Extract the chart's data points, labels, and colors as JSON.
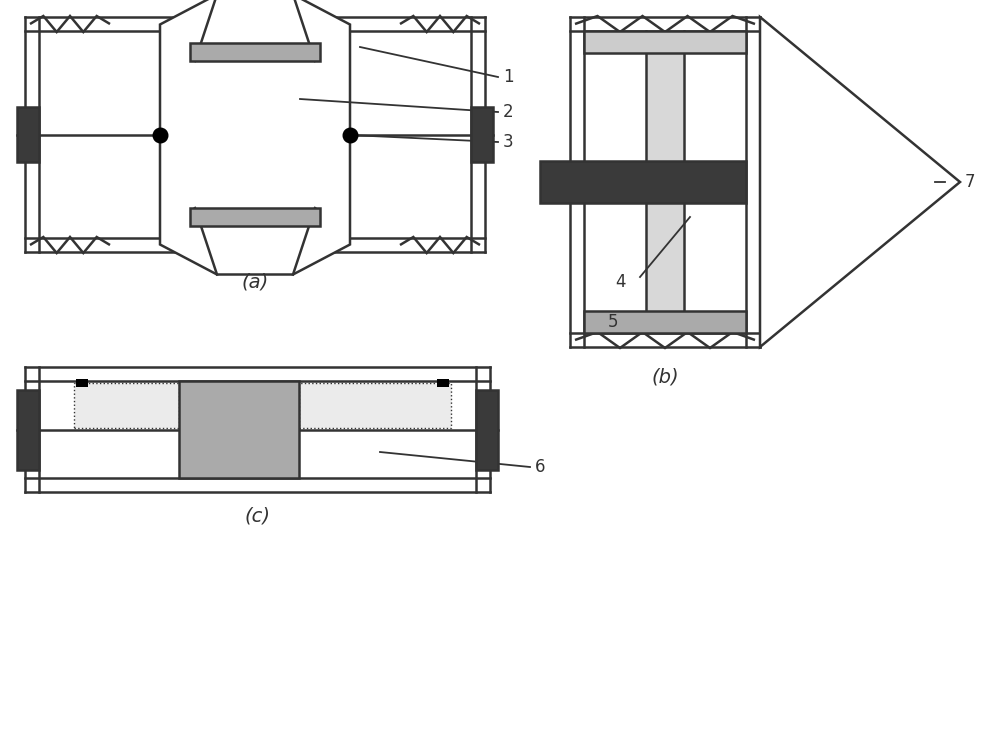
{
  "fig_width": 10.0,
  "fig_height": 7.37,
  "bg_color": "#ffffff",
  "line_color": "#333333",
  "dark_gray": "#3a3a3a",
  "medium_gray": "#909090",
  "light_gray": "#aaaaaa",
  "lighter_gray": "#cccccc",
  "very_light_gray": "#e0e0e0",
  "label_a": "(a)",
  "label_b": "(b)",
  "label_c": "(c)"
}
